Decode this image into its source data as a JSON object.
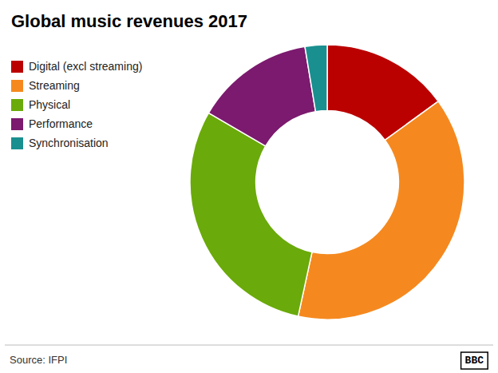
{
  "chart_data": {
    "type": "donut",
    "title": "Global music revenues 2017",
    "categories": [
      "Digital (excl streaming)",
      "Streaming",
      "Physical",
      "Performance",
      "Synchronisation"
    ],
    "values": [
      15.0,
      38.4,
      30.0,
      14.0,
      2.6
    ],
    "colors": [
      "#bb0000",
      "#f5891f",
      "#6aaa0a",
      "#7b1a6e",
      "#1a8f8f"
    ],
    "legend": "upper left",
    "annotations": [
      "Source: IFPI",
      "BBC"
    ]
  }
}
